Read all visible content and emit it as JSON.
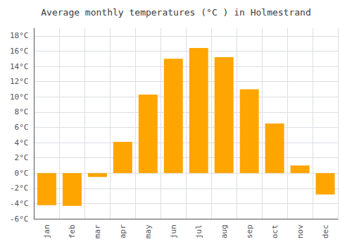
{
  "chart_data": {
    "type": "bar",
    "title": "Average monthly temperatures (°C ) in Holmestrand",
    "categories": [
      "jan",
      "feb",
      "mar",
      "apr",
      "may",
      "jun",
      "jul",
      "aug",
      "sep",
      "oct",
      "nov",
      "dec"
    ],
    "values": [
      -4.2,
      -4.3,
      -0.5,
      4.1,
      10.3,
      15.0,
      16.4,
      15.2,
      11.0,
      6.5,
      1.0,
      -2.8
    ],
    "color": "#FFA500",
    "ylim": [
      -6,
      19
    ],
    "yticks": [
      {
        "value": -6,
        "label": "-6°C"
      },
      {
        "value": -4,
        "label": "-4°C"
      },
      {
        "value": -2,
        "label": "-2°C"
      },
      {
        "value": 0,
        "label": "0°C"
      },
      {
        "value": 2,
        "label": "2°C"
      },
      {
        "value": 4,
        "label": "4°C"
      },
      {
        "value": 6,
        "label": "6°C"
      },
      {
        "value": 8,
        "label": "8°C"
      },
      {
        "value": 10,
        "label": "10°C"
      },
      {
        "value": 12,
        "label": "12°C"
      },
      {
        "value": 14,
        "label": "14°C"
      },
      {
        "value": 16,
        "label": "16°C"
      },
      {
        "value": 18,
        "label": "18°C"
      }
    ],
    "grid": true
  }
}
